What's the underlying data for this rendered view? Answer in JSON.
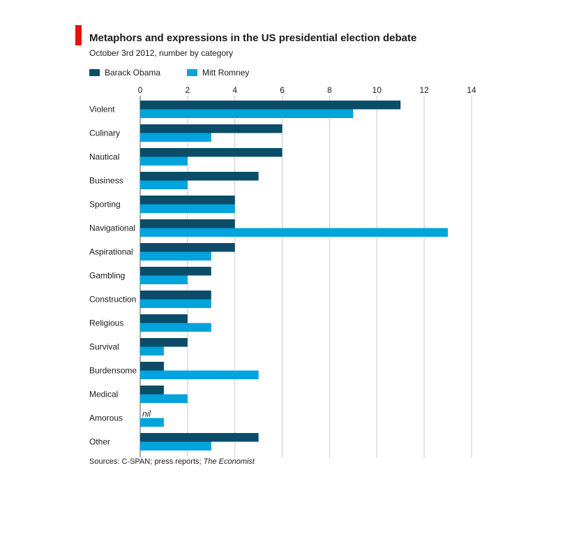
{
  "header": {
    "title": "Metaphors and expressions in the US presidential election debate",
    "subtitle": "October 3rd 2012, number by category"
  },
  "footer": {
    "source_prefix": "Sources: C-SPAN; press reports; ",
    "source_italic": "The Economist"
  },
  "colors": {
    "obama": "#0b4c68",
    "romney": "#00a3dc",
    "accent": "#e3120b",
    "grid": "#c8c8c8"
  },
  "chart_data": {
    "type": "bar",
    "orientation": "horizontal",
    "title": "Metaphors and expressions in the US presidential election debate",
    "subtitle": "October 3rd 2012, number by category",
    "categories": [
      "Violent",
      "Culinary",
      "Nautical",
      "Business",
      "Sporting",
      "Navigational",
      "Aspirational",
      "Gambling",
      "Construction",
      "Religious",
      "Survival",
      "Burdensome",
      "Medical",
      "Amorous",
      "Other"
    ],
    "series": [
      {
        "name": "Barack Obama",
        "values": [
          11,
          6,
          6,
          5,
          4,
          4,
          4,
          3,
          3,
          2,
          2,
          1,
          1,
          0,
          5
        ]
      },
      {
        "name": "Mitt Romney",
        "values": [
          9,
          3,
          2,
          2,
          4,
          13,
          3,
          2,
          3,
          3,
          1,
          5,
          2,
          1,
          3
        ]
      }
    ],
    "xlim": [
      0,
      14
    ],
    "xticks": [
      0,
      2,
      4,
      6,
      8,
      10,
      12,
      14
    ],
    "grid": true,
    "legend_position": "top",
    "annotations": [
      {
        "category": "Amorous",
        "series": "Barack Obama",
        "text": "nil"
      }
    ]
  }
}
